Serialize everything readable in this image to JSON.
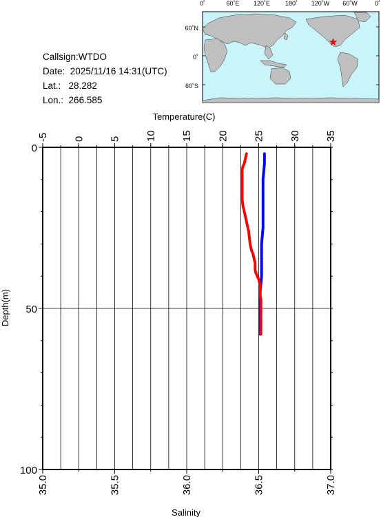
{
  "info": {
    "callsign": "Callsign:WTDO",
    "date_label": "Date:",
    "date_value": "2025/11/16 14:31(UTC)",
    "lat_label": "Lat.:",
    "lat_value": "28.282",
    "lon_label": "Lon.:",
    "lon_value": "266.585"
  },
  "map": {
    "top_labels": [
      "0˚",
      "60˚E",
      "120˚E",
      "180˚",
      "120˚W",
      "60˚W",
      "0˚"
    ],
    "left_labels": [
      "60˚N",
      "0˚",
      "60˚S"
    ],
    "marker_lon": 266.585,
    "marker_lat": 28.282,
    "colors": {
      "ocean": "#c8f4fa",
      "land": "#bfbfbf",
      "marker": "#ff0000"
    }
  },
  "chart_data": {
    "type": "line",
    "top_axis": {
      "label": "Temperature(C)",
      "range": [
        -5,
        35
      ],
      "ticks": [
        -5,
        0,
        5,
        10,
        15,
        20,
        25,
        30,
        35
      ],
      "tick_labels": [
        "-5",
        "0",
        "5",
        "10",
        "15",
        "20",
        "25",
        "30",
        "35"
      ]
    },
    "bottom_axis": {
      "label": "Salinity",
      "range": [
        35.0,
        37.0
      ],
      "ticks": [
        35.0,
        35.5,
        36.0,
        36.5,
        37.0
      ],
      "tick_labels": [
        "35.0",
        "35.5",
        "36.0",
        "36.5",
        "37.0"
      ]
    },
    "y_axis": {
      "label": "Depth(m)",
      "range": [
        0,
        100
      ],
      "inverted": true,
      "ticks": [
        0,
        50,
        100
      ],
      "tick_labels": [
        "0",
        "50",
        "100"
      ]
    },
    "grid": true,
    "series": [
      {
        "color": "#ff0000",
        "depth": [
          2,
          3,
          4,
          5,
          6,
          7,
          8,
          10,
          12,
          14,
          16,
          18,
          19,
          20,
          21,
          22,
          23,
          24,
          25,
          26,
          28,
          30,
          31,
          32,
          33,
          34,
          35,
          36,
          37,
          38,
          39,
          40,
          41,
          42,
          43,
          44,
          45,
          46,
          47,
          48,
          50,
          52,
          54,
          56,
          58
        ],
        "temperature": [
          23.3,
          23.2,
          23.1,
          23.0,
          22.8,
          22.7,
          22.7,
          22.7,
          22.7,
          22.7,
          22.7,
          22.8,
          22.9,
          23.0,
          23.1,
          23.2,
          23.3,
          23.4,
          23.5,
          23.6,
          23.7,
          23.8,
          23.9,
          24.0,
          24.2,
          24.3,
          24.4,
          24.5,
          24.5,
          24.5,
          24.6,
          24.8,
          25.0,
          25.1,
          25.2,
          25.2,
          25.2,
          25.2,
          25.3,
          25.3,
          25.3,
          25.3,
          25.3,
          25.3,
          25.3
        ]
      },
      {
        "color": "#0000ff",
        "depth": [
          2,
          5,
          10,
          15,
          20,
          25,
          30,
          35,
          40,
          45,
          50,
          55,
          58
        ],
        "salinity": [
          36.54,
          36.54,
          36.53,
          36.53,
          36.53,
          36.53,
          36.52,
          36.52,
          36.52,
          36.51,
          36.51,
          36.51,
          36.51
        ]
      }
    ]
  }
}
